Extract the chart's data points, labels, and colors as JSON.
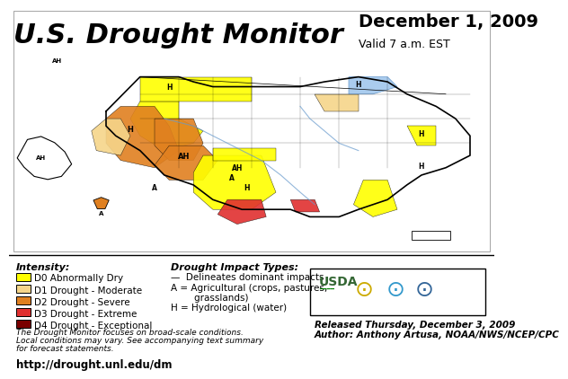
{
  "title": "U.S. Drought Monitor",
  "date": "December 1, 2009",
  "valid": "Valid 7 a.m. EST",
  "bg_color": "#ffffff",
  "title_color": "#000000",
  "title_fontsize": 22,
  "date_fontsize": 14,
  "legend_title": "Intensity:",
  "legend_items": [
    {
      "label": "D0 Abnormally Dry",
      "color": "#ffff00"
    },
    {
      "label": "D1 Drought - Moderate",
      "color": "#f5d58a"
    },
    {
      "label": "D2 Drought - Severe",
      "color": "#e08020"
    },
    {
      "label": "D3 Drought - Extreme",
      "color": "#e03030"
    },
    {
      "label": "D4 Drought - Exceptional",
      "color": "#7a0000"
    }
  ],
  "impact_title": "Drought Impact Types:",
  "impact_items": [
    "—  Delineates dominant impacts",
    "A = Agricultural (crops, pastures,",
    "        grasslands)",
    "H = Hydrological (water)"
  ],
  "footnote1": "The Drought Monitor focuses on broad-scale conditions.",
  "footnote2": "Local conditions may vary. See accompanying text summary",
  "footnote3": "for forecast statements.",
  "url": "http://drought.unl.edu/dm",
  "released": "Released Thursday, December 3, 2009",
  "author": "Author: Anthony Artusa, NOAA/NWS/NCEP/CPC",
  "map_bg": "#f0f0f0",
  "drought_colors": {
    "D0": "#ffff00",
    "D1": "#f5d58a",
    "D2": "#e08020",
    "D3": "#e03030",
    "D4": "#7a0000"
  }
}
